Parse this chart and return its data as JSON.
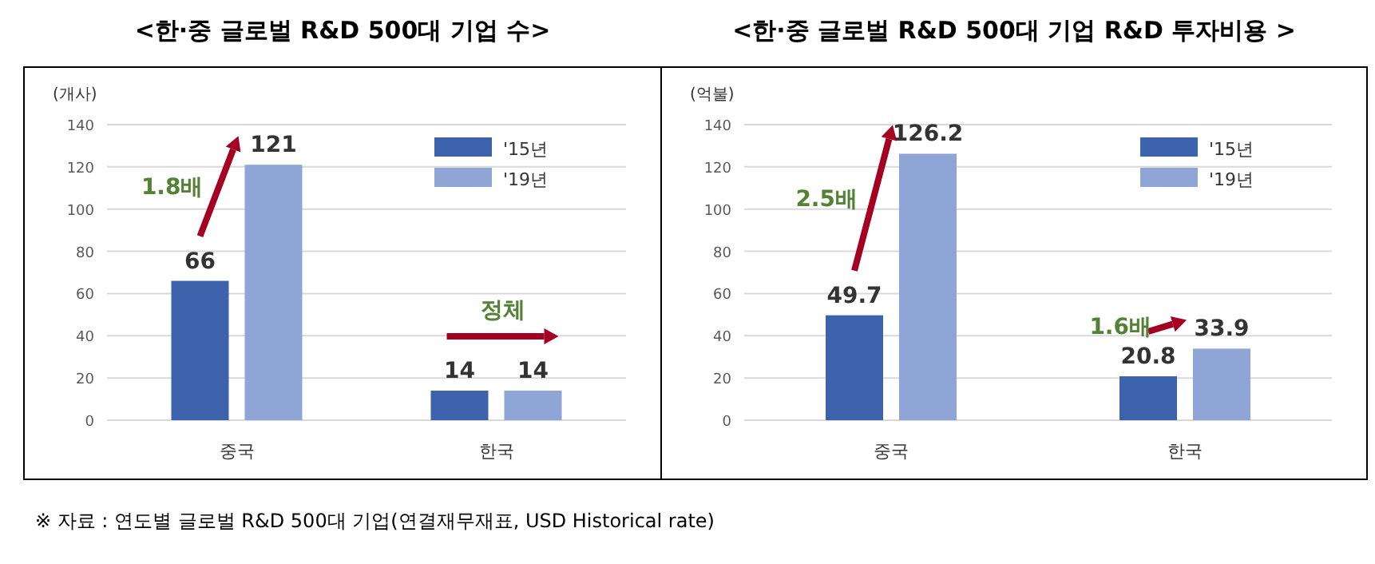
{
  "chart_data": [
    {
      "type": "bar",
      "title": "<한·중 글로벌 R&D 500대 기업 수>",
      "ylabel": "(개사)",
      "categories": [
        "중국",
        "한국"
      ],
      "series": [
        {
          "name": "'15년",
          "color": "#3c63ac",
          "values": [
            66,
            14
          ]
        },
        {
          "name": "'19년",
          "color": "#8fa5d5",
          "values": [
            121,
            14
          ]
        }
      ],
      "ylim": [
        0,
        140
      ],
      "yticks": [
        0,
        20,
        40,
        60,
        80,
        100,
        120,
        140
      ],
      "grid": "y",
      "legend": "top right",
      "data_labels": true,
      "annotations": [
        "1.8배",
        "정체"
      ]
    },
    {
      "type": "bar",
      "title": "<한·중 글로벌 R&D 500대 기업 R&D 투자비용 >",
      "ylabel": "(억불)",
      "categories": [
        "중국",
        "한국"
      ],
      "series": [
        {
          "name": "'15년",
          "color": "#3c63ac",
          "values": [
            49.7,
            20.8
          ]
        },
        {
          "name": "'19년",
          "color": "#8fa5d5",
          "values": [
            126.2,
            33.9
          ]
        }
      ],
      "ylim": [
        0,
        140
      ],
      "yticks": [
        0,
        20,
        40,
        60,
        80,
        100,
        120,
        140
      ],
      "grid": "y",
      "legend": "top right",
      "data_labels": true,
      "annotations": [
        "2.5배",
        "1.6배",
        "※ 자료 : 연도별 글로벌 R&D 500대 기업(연결재무재표, USD Historical rate)"
      ]
    }
  ]
}
